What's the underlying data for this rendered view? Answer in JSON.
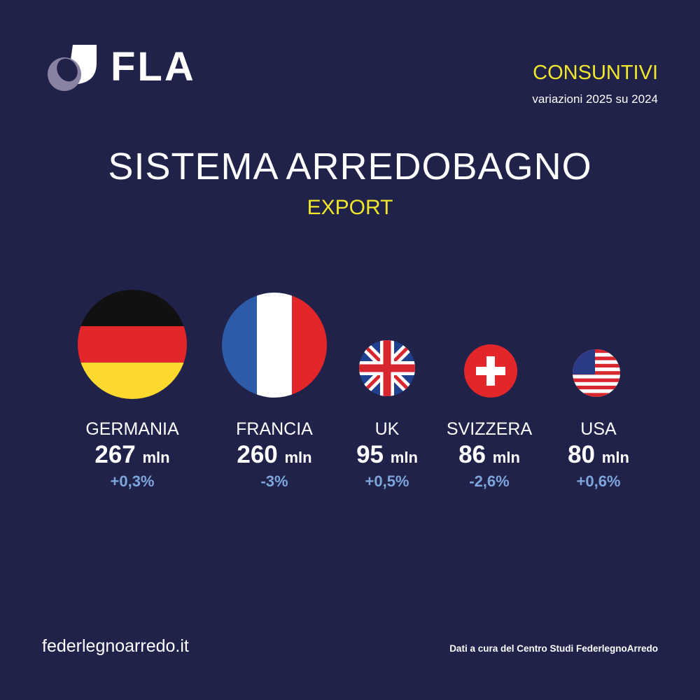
{
  "brand": {
    "logo_text": "FLA"
  },
  "header": {
    "label": "CONSUNTIVI",
    "subtitle": "variazioni 2025 su 2024"
  },
  "title": "SISTEMA ARREDOBAGNO",
  "subtitle": "EXPORT",
  "unit": "mln",
  "countries": [
    {
      "name": "GERMANIA",
      "value": "267",
      "change": "+0,3%",
      "flag": "germany-flag"
    },
    {
      "name": "FRANCIA",
      "value": "260",
      "change": "-3%",
      "flag": "france-flag"
    },
    {
      "name": "UK",
      "value": "95",
      "change": "+0,5%",
      "flag": "uk-flag"
    },
    {
      "name": "SVIZZERA",
      "value": "86",
      "change": "-2,6%",
      "flag": "switzerland-flag"
    },
    {
      "name": "USA",
      "value": "80",
      "change": "+0,6%",
      "flag": "usa-flag"
    }
  ],
  "colors": {
    "background": "#20224a",
    "accent": "#f0e62a",
    "change": "#7fa6dc"
  },
  "footer": {
    "website": "federlegnoarredo.it",
    "credit": "Dati a cura del Centro Studi FederlegnoArredo"
  }
}
